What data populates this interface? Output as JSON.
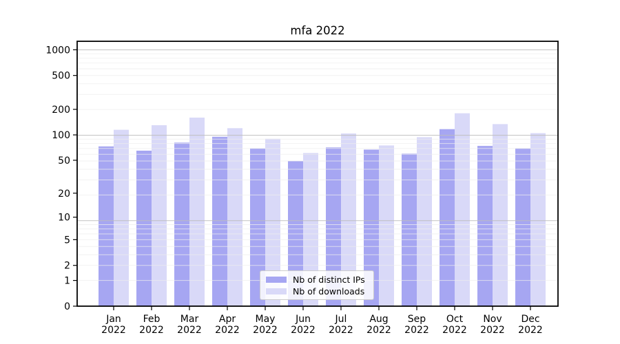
{
  "chart_data": {
    "type": "bar",
    "title": "mfa 2022",
    "categories": [
      {
        "month": "Jan",
        "year": "2022"
      },
      {
        "month": "Feb",
        "year": "2022"
      },
      {
        "month": "Mar",
        "year": "2022"
      },
      {
        "month": "Apr",
        "year": "2022"
      },
      {
        "month": "May",
        "year": "2022"
      },
      {
        "month": "Jun",
        "year": "2022"
      },
      {
        "month": "Jul",
        "year": "2022"
      },
      {
        "month": "Aug",
        "year": "2022"
      },
      {
        "month": "Sep",
        "year": "2022"
      },
      {
        "month": "Oct",
        "year": "2022"
      },
      {
        "month": "Nov",
        "year": "2022"
      },
      {
        "month": "Dec",
        "year": "2022"
      }
    ],
    "series": [
      {
        "name": "Nb of distinct IPs",
        "color": "#a6a6f2",
        "values": [
          73,
          65,
          81,
          95,
          69,
          49,
          71,
          67,
          60,
          117,
          74,
          69
        ]
      },
      {
        "name": "Nb of downloads",
        "color": "#d9d9f8",
        "values": [
          115,
          130,
          160,
          120,
          90,
          61,
          104,
          75,
          94,
          180,
          134,
          105
        ]
      }
    ],
    "y_axis": {
      "scale": "log1p",
      "ticks": [
        0,
        1,
        2,
        5,
        10,
        20,
        50,
        100,
        200,
        500,
        1000
      ],
      "ylim": [
        0,
        1259
      ]
    },
    "x_axis": {
      "label": ""
    },
    "legend_position": "lower center",
    "grid": "on",
    "frame_color": "#000000",
    "major_grid_color": "#bdbdbd",
    "minor_grid_color": "#ededed"
  }
}
